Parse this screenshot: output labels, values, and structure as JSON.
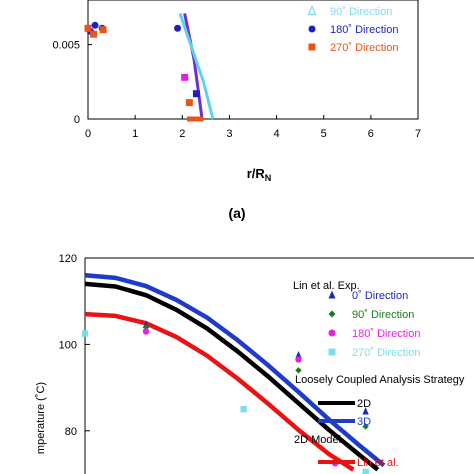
{
  "chart_data": [
    {
      "type": "scatter",
      "panel_label": "(a)",
      "xlabel_main": "r/R",
      "xlabel_sub": "N",
      "xlim": [
        0,
        7
      ],
      "ylim": [
        0,
        0.008
      ],
      "x_ticks": [
        "0",
        "1",
        "2",
        "3",
        "4",
        "5",
        "6",
        "7"
      ],
      "y_ticks": [
        {
          "value": 0,
          "label": "0"
        },
        {
          "value": 0.005,
          "label": "0.005"
        }
      ],
      "colors": {
        "90": "#7fdcec",
        "180": "#1e1ec8",
        "270": "#e8541c",
        "magenta": "#e81ee8",
        "line_purple": "#6a32cc",
        "line_cyan": "#5cd2ee"
      },
      "legend": [
        {
          "marker": "triangle-open",
          "color": "#7fdcec",
          "label": "90˚  Direction"
        },
        {
          "marker": "circle",
          "color": "#1e1ec8",
          "label": "180˚  Direction"
        },
        {
          "marker": "square",
          "color": "#e8541c",
          "label": "270˚  Direction"
        }
      ],
      "series": [
        {
          "marker": "circle",
          "color": "#1e1ec8",
          "points": [
            [
              0.05,
              0.0059
            ],
            [
              0.15,
              0.0063
            ],
            [
              0.3,
              0.0061
            ],
            [
              1.9,
              0.0061
            ]
          ]
        },
        {
          "marker": "square",
          "color": "#e8541c",
          "points": [
            [
              0.0,
              0.0061
            ],
            [
              0.12,
              0.0057
            ],
            [
              0.32,
              0.006
            ],
            [
              2.15,
              0.0011
            ]
          ]
        },
        {
          "marker": "square",
          "color": "#e81ee8",
          "points": [
            [
              2.05,
              0.0028
            ]
          ]
        },
        {
          "marker": "square",
          "color": "#1e1ec8",
          "points": [
            [
              2.3,
              0.0017
            ]
          ]
        }
      ],
      "lines": [
        {
          "color": "#6a32cc",
          "points": [
            [
              2.05,
              0.0071
            ],
            [
              2.25,
              0.004
            ],
            [
              2.42,
              0.0
            ]
          ]
        },
        {
          "color": "#5cd2ee",
          "points": [
            [
              1.95,
              0.0071
            ],
            [
              2.45,
              0.0025
            ],
            [
              2.65,
              0.0
            ]
          ]
        }
      ],
      "bar": {
        "color": "#e8541c",
        "x": [
          2.1,
          2.45
        ],
        "y": 0.0
      }
    },
    {
      "type": "line",
      "ylabel": "mperature (˚C)",
      "ylim": [
        70,
        120
      ],
      "y_ticks": [
        "80",
        "100",
        "120"
      ],
      "legend_exp_title": "Lin et al. Exp.",
      "legend_exp": [
        {
          "marker": "triangle",
          "color": "#1e28c8",
          "label": "0˚  Direction"
        },
        {
          "marker": "diamond",
          "color": "#1e7a1e",
          "label": "90˚  Direction"
        },
        {
          "marker": "circle",
          "color": "#e81ee8",
          "label": "180˚  Direction"
        },
        {
          "marker": "square",
          "color": "#7fdcec",
          "label": "270˚  Direction"
        }
      ],
      "legend_model_title": "Loosely Coupled Analysis Strategy",
      "legend_model": [
        {
          "color": "#000000",
          "label": "2D"
        },
        {
          "color": "#1e3cc8",
          "label": "3D"
        }
      ],
      "legend_2d_title": "2D Model",
      "legend_2d": [
        {
          "color": "#e81414",
          "label": "Lin et al."
        }
      ],
      "series": [
        {
          "name": "3D",
          "color": "#1e3cc8",
          "points": [
            [
              0.0,
              116
            ],
            [
              0.5,
              115.4
            ],
            [
              1.0,
              113.5
            ],
            [
              1.5,
              110.3
            ],
            [
              2.0,
              106.2
            ],
            [
              2.5,
              101.0
            ],
            [
              3.0,
              95.2
            ],
            [
              3.5,
              89.0
            ],
            [
              4.0,
              82.6
            ],
            [
              4.5,
              76.6
            ],
            [
              4.9,
              72.0
            ]
          ]
        },
        {
          "name": "2D",
          "color": "#000000",
          "points": [
            [
              0.0,
              114
            ],
            [
              0.5,
              113.4
            ],
            [
              1.0,
              111.4
            ],
            [
              1.5,
              108.0
            ],
            [
              2.0,
              103.7
            ],
            [
              2.5,
              98.4
            ],
            [
              3.0,
              92.6
            ],
            [
              3.5,
              86.4
            ],
            [
              4.0,
              80.2
            ],
            [
              4.5,
              74.4
            ],
            [
              4.8,
              71.0
            ]
          ]
        },
        {
          "name": "Lin et al.",
          "color": "#e81414",
          "points": [
            [
              0.0,
              107
            ],
            [
              0.5,
              106.6
            ],
            [
              1.0,
              104.9
            ],
            [
              1.5,
              101.7
            ],
            [
              2.0,
              97.4
            ],
            [
              2.5,
              92.1
            ],
            [
              3.0,
              86.3
            ],
            [
              3.5,
              80.2
            ],
            [
              4.0,
              74.6
            ],
            [
              4.4,
              71.0
            ]
          ]
        }
      ],
      "exp_points": [
        {
          "marker": "square",
          "color": "#7fdcec",
          "points": [
            [
              0.0,
              102.5
            ],
            [
              2.6,
              85
            ],
            [
              4.6,
              70.5
            ]
          ]
        },
        {
          "marker": "triangle",
          "color": "#1e28c8",
          "points": [
            [
              1.0,
              104.5
            ],
            [
              3.5,
              97.5
            ],
            [
              4.6,
              84.5
            ]
          ]
        },
        {
          "marker": "diamond",
          "color": "#1e7a1e",
          "points": [
            [
              1.0,
              104.0
            ],
            [
              3.5,
              94.0
            ],
            [
              4.6,
              81.0
            ],
            [
              4.1,
              68.5
            ]
          ]
        },
        {
          "marker": "circle",
          "color": "#e81ee8",
          "points": [
            [
              1.0,
              103.0
            ],
            [
              3.5,
              96.5
            ],
            [
              4.1,
              72.5
            ]
          ]
        }
      ]
    }
  ]
}
